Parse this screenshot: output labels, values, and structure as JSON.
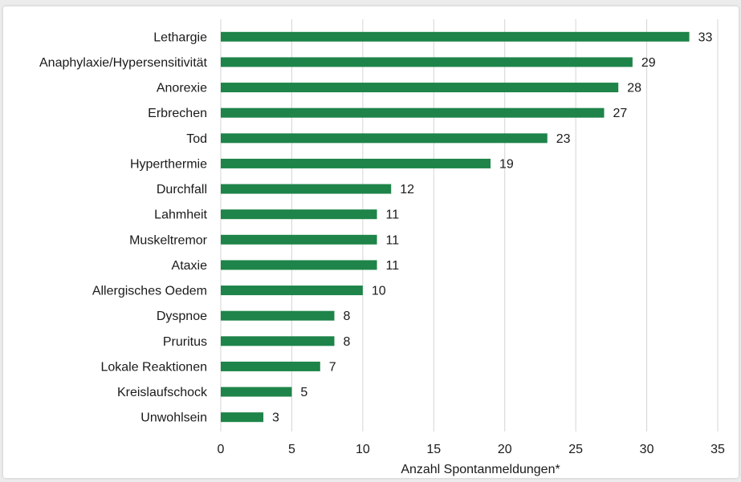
{
  "chart_data": {
    "type": "bar",
    "orientation": "horizontal",
    "categories": [
      "Lethargie",
      "Anaphylaxie/Hypersensitivität",
      "Anorexie",
      "Erbrechen",
      "Tod",
      "Hyperthermie",
      "Durchfall",
      "Lahmheit",
      "Muskeltremor",
      "Ataxie",
      "Allergisches Oedem",
      "Dyspnoe",
      "Pruritus",
      "Lokale Reaktionen",
      "Kreislaufschock",
      "Unwohlsein"
    ],
    "values": [
      33,
      29,
      28,
      27,
      23,
      19,
      12,
      11,
      11,
      11,
      10,
      8,
      8,
      7,
      5,
      3
    ],
    "title": "",
    "xlabel": "Anzahl Spontanmeldungen*",
    "ylabel": "",
    "xlim": [
      0,
      35
    ],
    "xticks": [
      "0",
      "5",
      "10",
      "15",
      "20",
      "25",
      "30",
      "35"
    ],
    "grid": "vertical",
    "data_labels": true,
    "bar_color": "#1e8449",
    "grid_color": "#d4d4d4"
  }
}
